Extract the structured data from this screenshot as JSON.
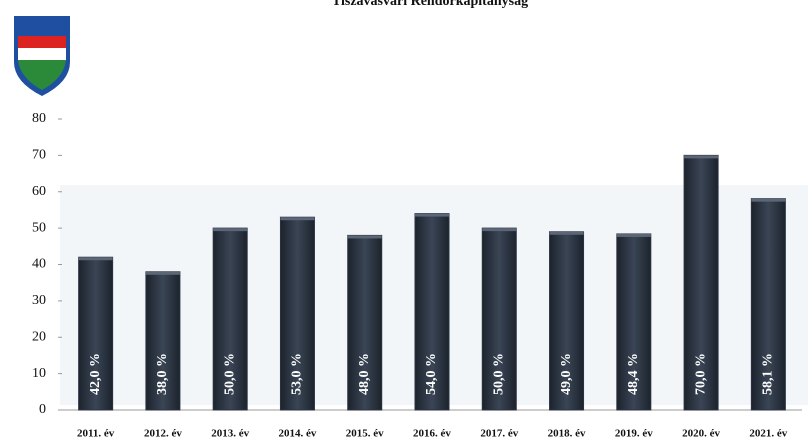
{
  "chart_data": {
    "type": "bar",
    "title": "Tiszavasvári Rendőrkapitányság",
    "categories": [
      "2011. év",
      "2012. év",
      "2013. év",
      "2014. év",
      "2015. év",
      "2016. év",
      "2017. év",
      "2018. év",
      "2019. év",
      "2020. év",
      "2021. év"
    ],
    "values": [
      42,
      38,
      50,
      53,
      48,
      54,
      50,
      49,
      48.4,
      70,
      58.1
    ],
    "value_labels": [
      "42,0 %",
      "38,0 %",
      "50,0 %",
      "53,0 %",
      "48,0 %",
      "54,0 %",
      "50,0 %",
      "49,0 %",
      "48,4 %",
      "70,0 %",
      "58,1 %"
    ],
    "color": "#2a3340",
    "ylim": [
      0,
      80
    ],
    "yticks": [
      0,
      10,
      20,
      30,
      40,
      50,
      60,
      70,
      80
    ]
  }
}
